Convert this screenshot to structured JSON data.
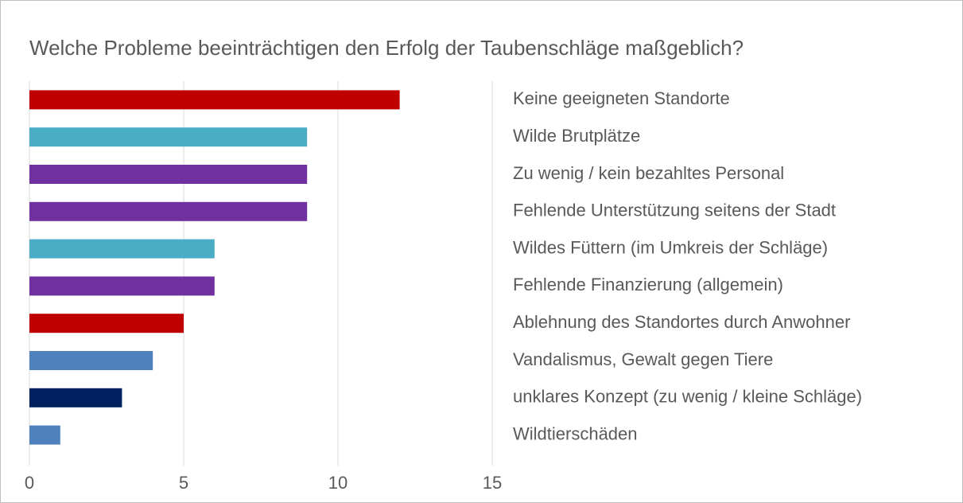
{
  "chart_data": {
    "type": "bar",
    "orientation": "horizontal",
    "title": "Welche Probleme beeinträchtigen den Erfolg der Taubenschläge maßgeblich?",
    "categories": [
      "Keine geeigneten Standorte",
      "Wilde Brutplätze",
      "Zu wenig / kein bezahltes Personal",
      "Fehlende Unterstützung seitens der Stadt",
      "Wildes Füttern (im Umkreis der Schläge)",
      "Fehlende Finanzierung (allgemein)",
      "Ablehnung des Standortes durch Anwohner",
      "Vandalismus, Gewalt gegen Tiere",
      "unklares Konzept (zu wenig / kleine Schläge)",
      "Wildtierschäden"
    ],
    "values": [
      12,
      9,
      9,
      9,
      6,
      6,
      5,
      4,
      3,
      1
    ],
    "colors": [
      "#c00000",
      "#4bacc6",
      "#7030a0",
      "#7030a0",
      "#4bacc6",
      "#7030a0",
      "#c00000",
      "#4f81bd",
      "#002060",
      "#4f81bd"
    ],
    "xlim": [
      0,
      15
    ],
    "xticks": [
      0,
      5,
      10,
      15
    ],
    "grid": true
  }
}
